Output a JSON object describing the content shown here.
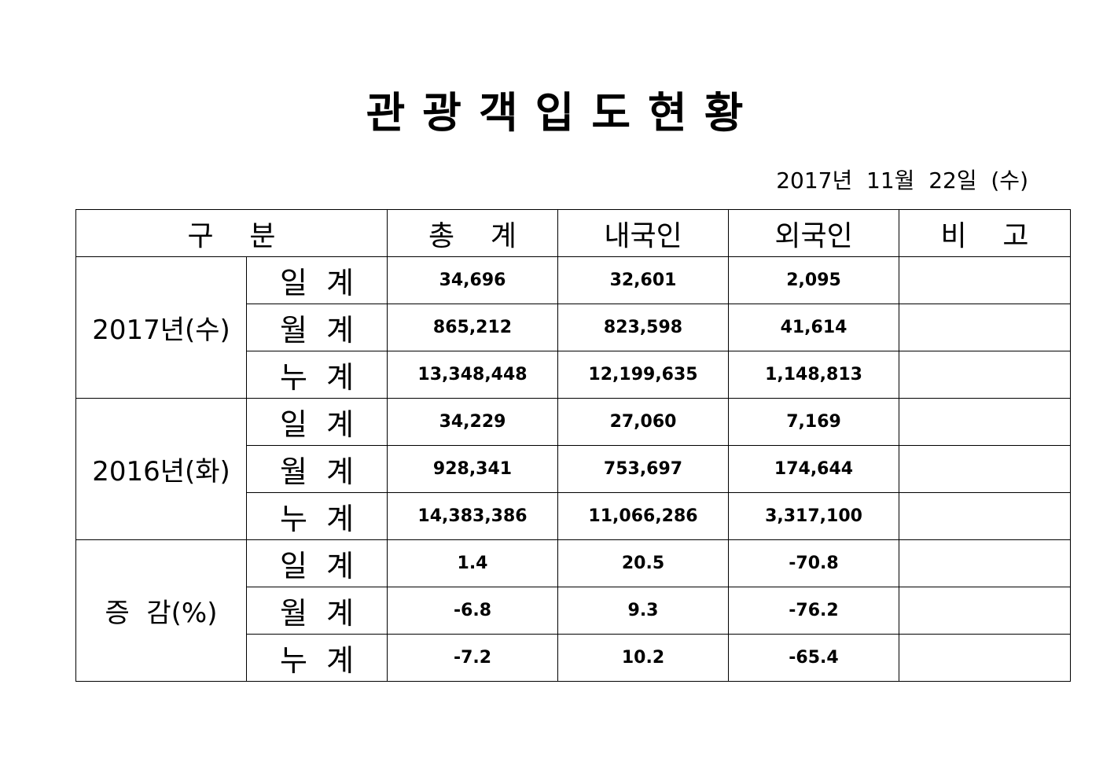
{
  "title_chars": [
    "관",
    "광",
    "객",
    "입",
    "도",
    "현",
    "황"
  ],
  "date": "2017년  11월  22일  (수)",
  "headers": {
    "category": "구    분",
    "total": "총    계",
    "domestic": "내국인",
    "foreign": "외국인",
    "remarks": "비    고"
  },
  "groups": [
    {
      "label": "2017년(수)",
      "rows": [
        {
          "sub": "일  계",
          "total": "34,696",
          "domestic": "32,601",
          "foreign": "2,095",
          "remarks": ""
        },
        {
          "sub": "월  계",
          "total": "865,212",
          "domestic": "823,598",
          "foreign": "41,614",
          "remarks": ""
        },
        {
          "sub": "누  계",
          "total": "13,348,448",
          "domestic": "12,199,635",
          "foreign": "1,148,813",
          "remarks": ""
        }
      ]
    },
    {
      "label": "2016년(화)",
      "rows": [
        {
          "sub": "일  계",
          "total": "34,229",
          "domestic": "27,060",
          "foreign": "7,169",
          "remarks": ""
        },
        {
          "sub": "월  계",
          "total": "928,341",
          "domestic": "753,697",
          "foreign": "174,644",
          "remarks": ""
        },
        {
          "sub": "누  계",
          "total": "14,383,386",
          "domestic": "11,066,286",
          "foreign": "3,317,100",
          "remarks": ""
        }
      ]
    },
    {
      "label": "증  감(%)",
      "rows": [
        {
          "sub": "일  계",
          "total": "1.4",
          "domestic": "20.5",
          "foreign": "-70.8",
          "remarks": ""
        },
        {
          "sub": "월  계",
          "total": "-6.8",
          "domestic": "9.3",
          "foreign": "-76.2",
          "remarks": ""
        },
        {
          "sub": "누  계",
          "total": "-7.2",
          "domestic": "10.2",
          "foreign": "-65.4",
          "remarks": ""
        }
      ]
    }
  ]
}
